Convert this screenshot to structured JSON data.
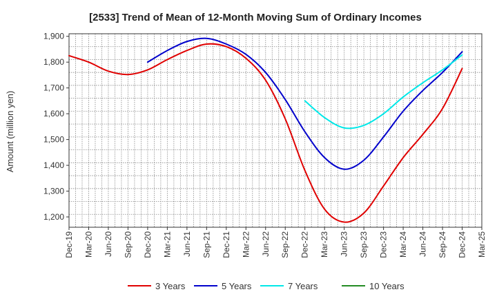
{
  "chart_data": {
    "type": "line",
    "title": "[2533]  Trend of Mean of 12-Month Moving Sum of Ordinary Incomes",
    "xlabel": "",
    "ylabel": "Amount (million yen)",
    "ylim": [
      1160,
      1910
    ],
    "yticks": [
      1200,
      1300,
      1400,
      1500,
      1600,
      1700,
      1800,
      1900
    ],
    "ytick_labels": [
      "1,200",
      "1,300",
      "1,400",
      "1,500",
      "1,600",
      "1,700",
      "1,800",
      "1,900"
    ],
    "categories": [
      "Dec-19",
      "Mar-20",
      "Jun-20",
      "Sep-20",
      "Dec-20",
      "Mar-21",
      "Jun-21",
      "Sep-21",
      "Dec-21",
      "Mar-22",
      "Jun-22",
      "Sep-22",
      "Dec-22",
      "Mar-23",
      "Jun-23",
      "Sep-23",
      "Dec-23",
      "Mar-24",
      "Jun-24",
      "Sep-24",
      "Dec-24",
      "Mar-25"
    ],
    "grid": true,
    "legend_position": "bottom",
    "series": [
      {
        "name": "3 Years",
        "color": "#e00000",
        "values": [
          1825,
          1800,
          1765,
          1752,
          1770,
          1810,
          1845,
          1870,
          1860,
          1815,
          1730,
          1580,
          1380,
          1230,
          1180,
          1215,
          1320,
          1430,
          1520,
          1620,
          1775,
          null
        ]
      },
      {
        "name": "5 Years",
        "color": "#0000cc",
        "values": [
          null,
          null,
          null,
          null,
          1800,
          1845,
          1880,
          1892,
          1870,
          1830,
          1760,
          1655,
          1530,
          1430,
          1385,
          1420,
          1510,
          1610,
          1690,
          1760,
          1840,
          null
        ]
      },
      {
        "name": "7 Years",
        "color": "#00e8e8",
        "values": [
          null,
          null,
          null,
          null,
          null,
          null,
          null,
          null,
          null,
          null,
          null,
          null,
          1650,
          1585,
          1545,
          1555,
          1600,
          1665,
          1720,
          1770,
          1828,
          null
        ]
      },
      {
        "name": "10 Years",
        "color": "#228B22",
        "values": [
          null,
          null,
          null,
          null,
          null,
          null,
          null,
          null,
          null,
          null,
          null,
          null,
          null,
          null,
          null,
          null,
          null,
          null,
          null,
          null,
          null,
          null
        ]
      }
    ]
  }
}
